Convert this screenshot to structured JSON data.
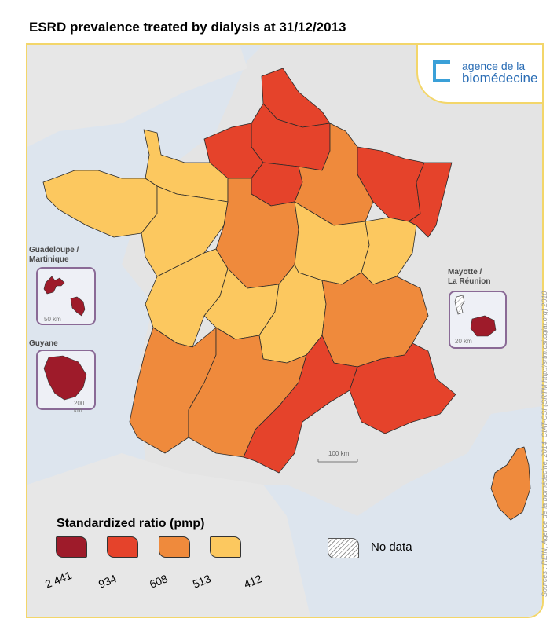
{
  "title": "ESRD prevalence treated by dialysis at 31/12/2013",
  "logo": {
    "line1": "agence de la",
    "line2": "biomédecine"
  },
  "colors": {
    "c_dark": "#9e1b2a",
    "c_red": "#e5432b",
    "c_orange": "#ef8a3c",
    "c_yellow": "#fcc85f",
    "sea": "#dfe6ee",
    "land_bg": "#e6e6e6"
  },
  "insets": {
    "guadeloupe_label": "Guadeloupe /\nMartinique",
    "guadeloupe_scale": "50 km",
    "guyane_label": "Guyane",
    "guyane_scale": "200 km",
    "mayotte_label": "Mayotte /\nLa Réunion",
    "mayotte_scale": "20 km"
  },
  "map_scale": "100 km",
  "legend": {
    "title": "Standardized ratio (pmp)",
    "thresholds": [
      "2 441",
      "934",
      "608",
      "513",
      "412"
    ],
    "nodata": "No data"
  },
  "source": "Sources : REIN,  Agence de la biomédecine,  2014,  CIAT-CSI (SRTM http://srtm.csi.cgiar.org) 2010",
  "regions": [
    {
      "name": "Nord-Pas-de-Calais",
      "class": "c_red"
    },
    {
      "name": "Picardie",
      "class": "c_red"
    },
    {
      "name": "Haute-Normandie",
      "class": "c_red"
    },
    {
      "name": "Ile-de-France",
      "class": "c_red"
    },
    {
      "name": "Champagne-Ardenne",
      "class": "c_orange"
    },
    {
      "name": "Lorraine",
      "class": "c_red"
    },
    {
      "name": "Alsace",
      "class": "c_red"
    },
    {
      "name": "Basse-Normandie",
      "class": "c_yellow"
    },
    {
      "name": "Bretagne",
      "class": "c_yellow"
    },
    {
      "name": "Pays de la Loire",
      "class": "c_yellow"
    },
    {
      "name": "Centre",
      "class": "c_orange"
    },
    {
      "name": "Bourgogne",
      "class": "c_yellow"
    },
    {
      "name": "Franche-Comté",
      "class": "c_yellow"
    },
    {
      "name": "Poitou-Charentes",
      "class": "c_yellow"
    },
    {
      "name": "Limousin",
      "class": "c_yellow"
    },
    {
      "name": "Auvergne",
      "class": "c_yellow"
    },
    {
      "name": "Rhône-Alpes",
      "class": "c_orange"
    },
    {
      "name": "Aquitaine",
      "class": "c_orange"
    },
    {
      "name": "Midi-Pyrénées",
      "class": "c_orange"
    },
    {
      "name": "Languedoc-Roussillon",
      "class": "c_red"
    },
    {
      "name": "Provence-Alpes-Côte d'Azur",
      "class": "c_red"
    },
    {
      "name": "Corse",
      "class": "c_orange"
    },
    {
      "name": "Guadeloupe",
      "class": "c_dark"
    },
    {
      "name": "Martinique",
      "class": "c_dark"
    },
    {
      "name": "Guyane",
      "class": "c_dark"
    },
    {
      "name": "La Réunion",
      "class": "c_dark"
    },
    {
      "name": "Mayotte",
      "class": "nodata"
    }
  ]
}
